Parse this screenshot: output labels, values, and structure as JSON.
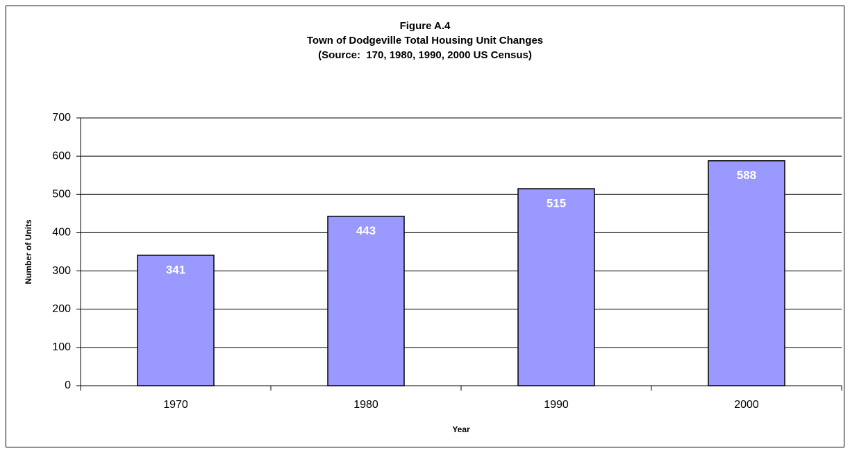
{
  "chart_data": {
    "type": "bar",
    "title_lines": [
      "Figure A.4",
      "Town of Dodgeville Total Housing Unit Changes",
      "(Source:  170, 1980, 1990, 2000 US Census)"
    ],
    "x_label": "Year",
    "y_label": "Number of Units",
    "categories": [
      "1970",
      "1980",
      "1990",
      "2000"
    ],
    "values": [
      341,
      443,
      515,
      588
    ],
    "color": "#9999ff",
    "ylim": [
      0,
      700
    ],
    "yticks": [
      0,
      100,
      200,
      300,
      400,
      500,
      600,
      700
    ],
    "grid": true
  }
}
